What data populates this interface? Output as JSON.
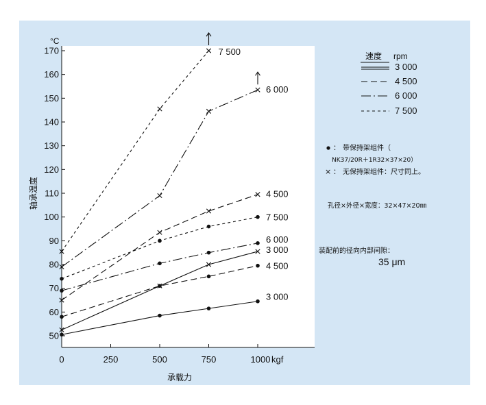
{
  "chart_data": {
    "type": "line",
    "x_unit": "kgf",
    "y_unit": "°C",
    "xlabel": "承载力",
    "ylabel": "轴承温度",
    "xlim": [
      0,
      1300
    ],
    "ylim": [
      45,
      172
    ],
    "x_ticks": [
      "0",
      "250",
      "500",
      "750",
      "1000"
    ],
    "y_ticks": [
      "50",
      "60",
      "70",
      "80",
      "90",
      "100",
      "110",
      "120",
      "130",
      "140",
      "150",
      "160",
      "170"
    ],
    "legend_title": [
      "速度",
      "rpm"
    ],
    "series": [
      {
        "name": "3 000",
        "group": "带保持架组件",
        "marker": "dot",
        "dash": "solid",
        "x": [
          0,
          500,
          750,
          1000
        ],
        "y": [
          50.5,
          58.5,
          61.5,
          64.5
        ],
        "end_label": "3 000"
      },
      {
        "name": "4 500",
        "group": "带保持架组件",
        "marker": "dot",
        "dash": "dashed",
        "x": [
          0,
          500,
          750,
          1000
        ],
        "y": [
          58,
          71,
          75,
          79.5
        ],
        "end_label": "4 500"
      },
      {
        "name": "6 000",
        "group": "带保持架组件",
        "marker": "dot",
        "dash": "dashdot",
        "x": [
          0,
          500,
          750,
          1000
        ],
        "y": [
          69,
          80.5,
          85,
          89
        ],
        "end_label": "6 000"
      },
      {
        "name": "7 500",
        "group": "带保持架组件",
        "marker": "dot",
        "dash": "dotted",
        "x": [
          0,
          500,
          750,
          1000
        ],
        "y": [
          74,
          90,
          96,
          100
        ],
        "end_label": "7 500"
      },
      {
        "name": "3 000",
        "group": "无保持架组件",
        "marker": "x",
        "dash": "solid",
        "x": [
          0,
          500,
          750,
          1000
        ],
        "y": [
          52.5,
          71,
          80,
          85.5
        ],
        "end_label": "3 000"
      },
      {
        "name": "4 500",
        "group": "无保持架组件",
        "marker": "x",
        "dash": "dashed",
        "x": [
          0,
          500,
          750,
          1000
        ],
        "y": [
          65,
          93.5,
          102.5,
          109.5
        ],
        "end_label": "4 500"
      },
      {
        "name": "6 000",
        "group": "无保持架组件",
        "marker": "x",
        "dash": "dashdot",
        "x": [
          0,
          500,
          750,
          1000
        ],
        "y": [
          79,
          109,
          144.5,
          153.5
        ],
        "end_label": "6 000",
        "arrow_at_end": true
      },
      {
        "name": "7 500",
        "group": "无保持架组件",
        "marker": "x",
        "dash": "dotted",
        "x": [
          0,
          500,
          750
        ],
        "y": [
          85.5,
          145.5,
          170
        ],
        "end_label": "7 500",
        "arrow_at_end": true
      }
    ],
    "legend_speeds": [
      "3 000",
      "4 500",
      "6 000",
      "7 500"
    ],
    "notes": {
      "dot_note": "带保持架组件（",
      "dot_note_2": "NK37/20R＋1R32×37×20）",
      "x_note": "无保持架组件：尺寸同上。",
      "dim_note": "孔径×外径×宽度：32×47×20㎜",
      "clearance_label": "装配前的径向内部间隙：",
      "clearance_value": "35 μm"
    },
    "symbols": {
      "dot": "●",
      "x": "×",
      "colon": "："
    },
    "colors": {
      "background": "#d4e6f5",
      "plot_bg": "#ffffff",
      "line": "#111111"
    }
  }
}
